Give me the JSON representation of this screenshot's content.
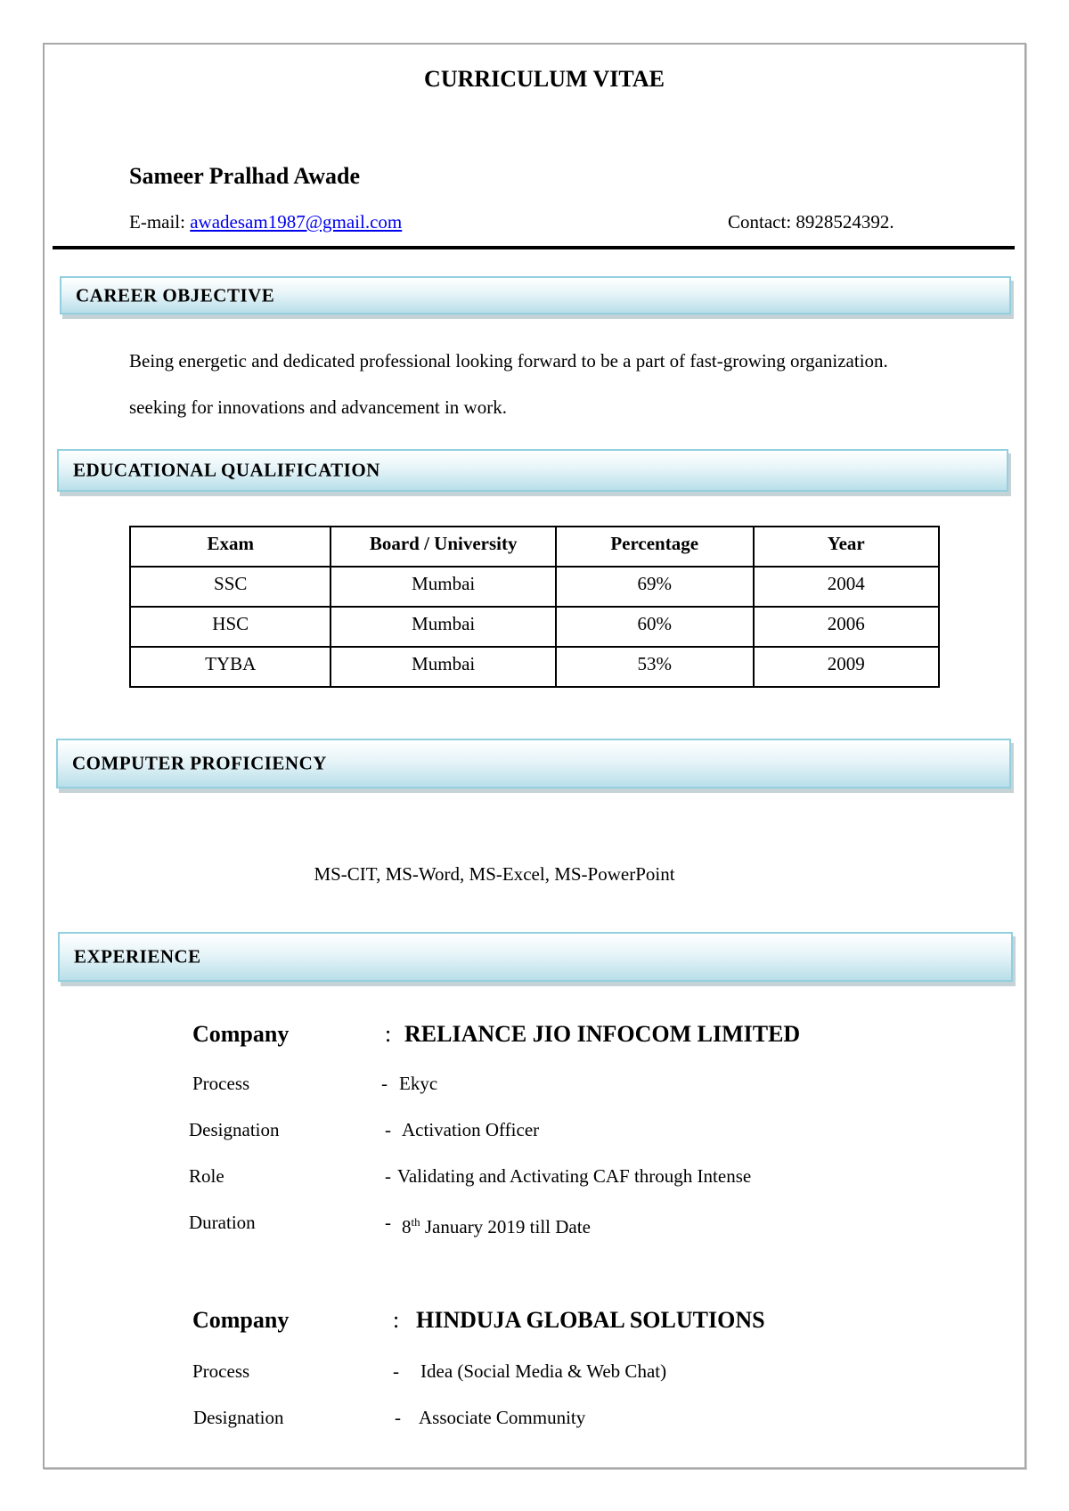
{
  "title": "CURRICULUM VITAE",
  "name": "Sameer Pralhad Awade",
  "contact": {
    "email_label": "E-mail: ",
    "email": "awadesam1987@gmail.com",
    "phone_label": "Contact: ",
    "phone": "8928524392."
  },
  "sections": {
    "career": "CAREER OBJECTIVE",
    "education": "EDUCATIONAL QUALIFICATION",
    "computer": "COMPUTER PROFICIENCY",
    "experience": "EXPERIENCE"
  },
  "objective": {
    "line1": "Being energetic and dedicated professional looking forward to be a part of fast-growing organization.",
    "line2": "seeking for innovations and advancement in work."
  },
  "education": {
    "headers": [
      "Exam",
      "Board / University",
      "Percentage",
      "Year"
    ],
    "rows": [
      [
        "SSC",
        "Mumbai",
        "69%",
        "2004"
      ],
      [
        "HSC",
        "Mumbai",
        "60%",
        "2006"
      ],
      [
        "TYBA",
        "Mumbai",
        "53%",
        "2009"
      ]
    ]
  },
  "skills": "MS-CIT, MS-Word, MS-Excel, MS-PowerPoint",
  "experience": [
    {
      "company_label": "Company",
      "colon": ":",
      "company": "RELIANCE JIO INFOCOM LIMITED",
      "details": [
        {
          "label": "Process",
          "dash": "-",
          "value": "Ekyc"
        },
        {
          "label": "Designation",
          "dash": "-",
          "value": "Activation Officer"
        },
        {
          "label": "Role",
          "dash": "-",
          "value": "Validating and Activating CAF through Intense"
        },
        {
          "label": "Duration",
          "dash": "-",
          "value_day": "8",
          "value_sup": "th",
          "value_rest": " January 2019 till Date"
        }
      ]
    },
    {
      "company_label": "Company",
      "colon": ":",
      "company": "HINDUJA GLOBAL SOLUTIONS",
      "details": [
        {
          "label": "Process",
          "dash": "-",
          "value": "Idea (Social Media & Web Chat)"
        },
        {
          "label": "Designation",
          "dash": "-",
          "value": "Associate Community"
        }
      ]
    }
  ]
}
